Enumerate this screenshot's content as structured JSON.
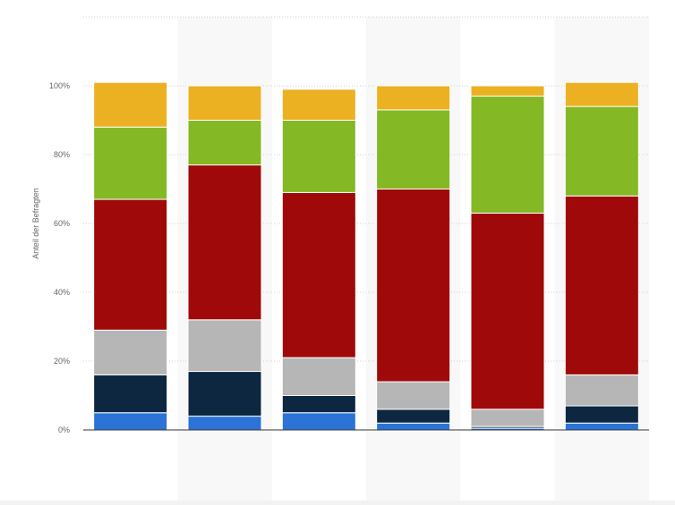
{
  "chart_data": {
    "type": "bar",
    "stacked": true,
    "title": "",
    "xlabel": "",
    "ylabel": "Anteil der Befragten",
    "categories": [
      "",
      "",
      "",
      "",
      "",
      ""
    ],
    "ylim": [
      0,
      120
    ],
    "yticks": [
      0,
      20,
      40,
      60,
      80,
      100
    ],
    "ytick_labels": [
      "0%",
      "20%",
      "40%",
      "60%",
      "80%",
      "100%"
    ],
    "grid": true,
    "legend": "none",
    "series": [
      {
        "color": "#2b73d6",
        "values": [
          5,
          4,
          5,
          2,
          0.5,
          2
        ]
      },
      {
        "color": "#0d2740",
        "values": [
          11,
          13,
          5,
          4,
          0.5,
          5
        ]
      },
      {
        "color": "#b6b6b6",
        "values": [
          13,
          15,
          11,
          8,
          5,
          9
        ]
      },
      {
        "color": "#a00909",
        "values": [
          38,
          45,
          48,
          56,
          57,
          52
        ]
      },
      {
        "color": "#84b824",
        "values": [
          21,
          13,
          21,
          23,
          34,
          26
        ]
      },
      {
        "color": "#ecb122",
        "values": [
          13,
          10,
          9,
          7,
          3,
          7
        ]
      }
    ]
  }
}
